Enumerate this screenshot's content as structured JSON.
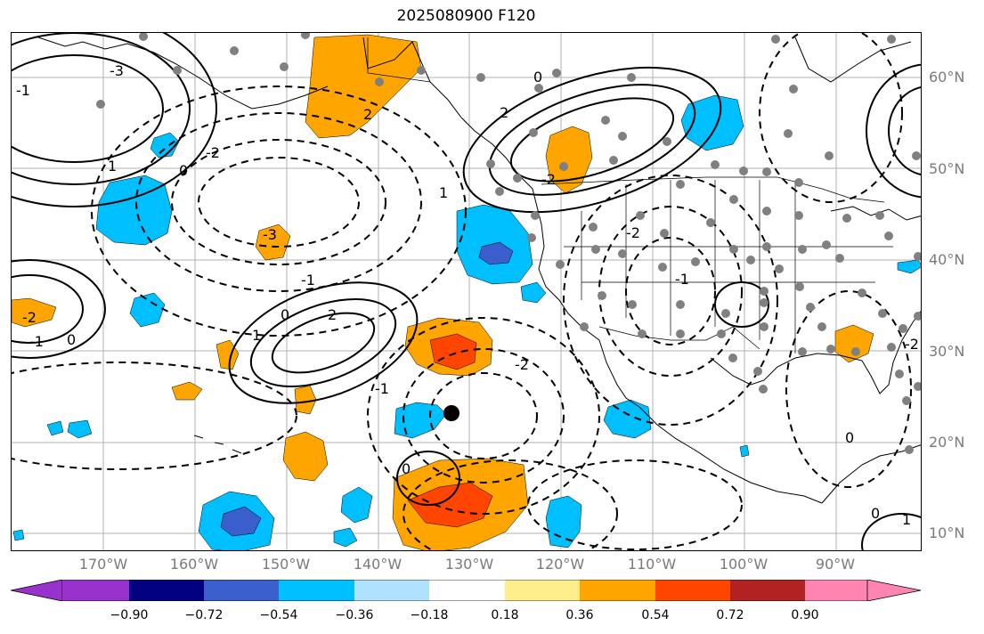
{
  "title": "2025080900 F120",
  "lat_labels": [
    "60°N",
    "50°N",
    "40°N",
    "30°N",
    "20°N",
    "10°N"
  ],
  "lon_labels": [
    "170°W",
    "160°W",
    "150°W",
    "140°W",
    "130°W",
    "120°W",
    "110°W",
    "100°W",
    "90°W"
  ],
  "contour_labels": [
    "-3",
    "2",
    "-2",
    "0",
    "-1",
    "1",
    "2",
    "-2",
    "-3",
    "-1",
    "1",
    "0",
    "-1",
    "2",
    "-2",
    "0",
    "1",
    "0",
    "-2",
    "-2",
    "-1",
    "-1",
    "0",
    "0",
    "-2",
    "1",
    "0"
  ],
  "colorbar": {
    "ticks": [
      "−0.90",
      "−0.72",
      "−0.54",
      "−0.36",
      "−0.18",
      "0.18",
      "0.36",
      "0.54",
      "0.72",
      "0.90"
    ],
    "under_color": "#9932cc",
    "over_color": "#ff85b0",
    "colors": [
      "#000080",
      "#3a5fcd",
      "#00bfff",
      "#b0e2ff",
      "#ffffff",
      "#ffffff",
      "#ffec8b",
      "#ffa500",
      "#ff4500",
      "#b22222"
    ]
  },
  "shading_colors": {
    "orange": "#ffa500",
    "red_orange": "#ff4500",
    "sky_blue": "#00bfff",
    "royal_blue": "#3a5fcd"
  },
  "marker": "black-dot"
}
